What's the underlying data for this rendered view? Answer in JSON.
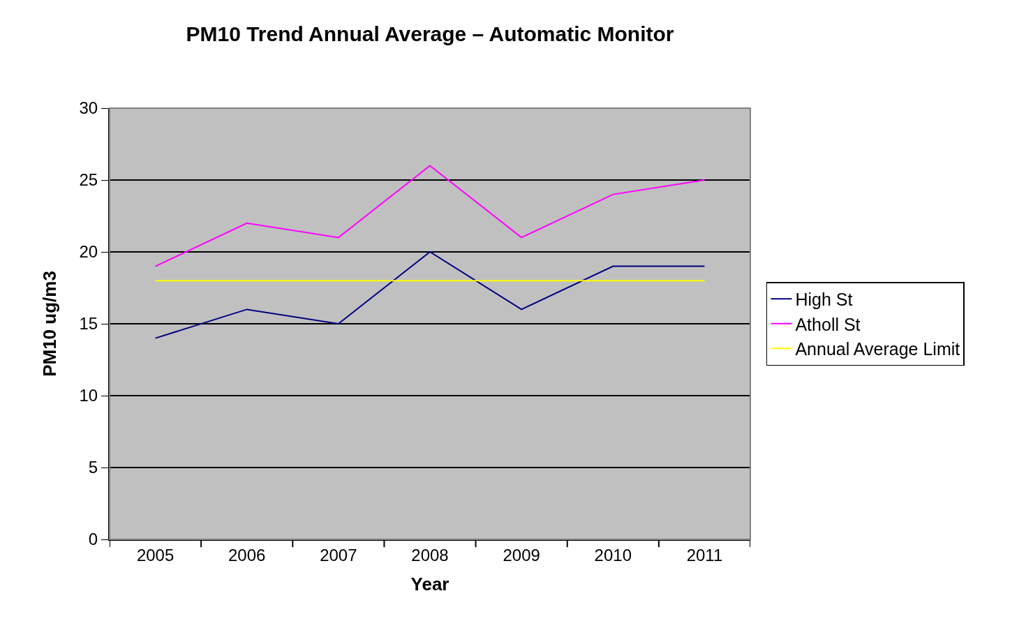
{
  "chart_data": {
    "type": "line",
    "title": "PM10 Trend Annual Average – Automatic Monitor",
    "xlabel": "Year",
    "ylabel": "PM10 ug/m3",
    "categories": [
      "2005",
      "2006",
      "2007",
      "2008",
      "2009",
      "2010",
      "2011"
    ],
    "series": [
      {
        "name": "High St",
        "color": "#000080",
        "values": [
          14,
          16,
          15,
          20,
          16,
          19,
          19
        ]
      },
      {
        "name": "Atholl St",
        "color": "#ff00ff",
        "values": [
          19,
          22,
          21,
          26,
          21,
          24,
          25
        ]
      },
      {
        "name": "Annual Average Limit",
        "color": "#ffff00",
        "values": [
          18,
          18,
          18,
          18,
          18,
          18,
          18
        ]
      }
    ],
    "ylim": [
      0,
      30
    ],
    "yticks": [
      0,
      5,
      10,
      15,
      20,
      25,
      30
    ],
    "grid": "y",
    "legend": "right",
    "marker": "none",
    "line_style": "solid"
  }
}
